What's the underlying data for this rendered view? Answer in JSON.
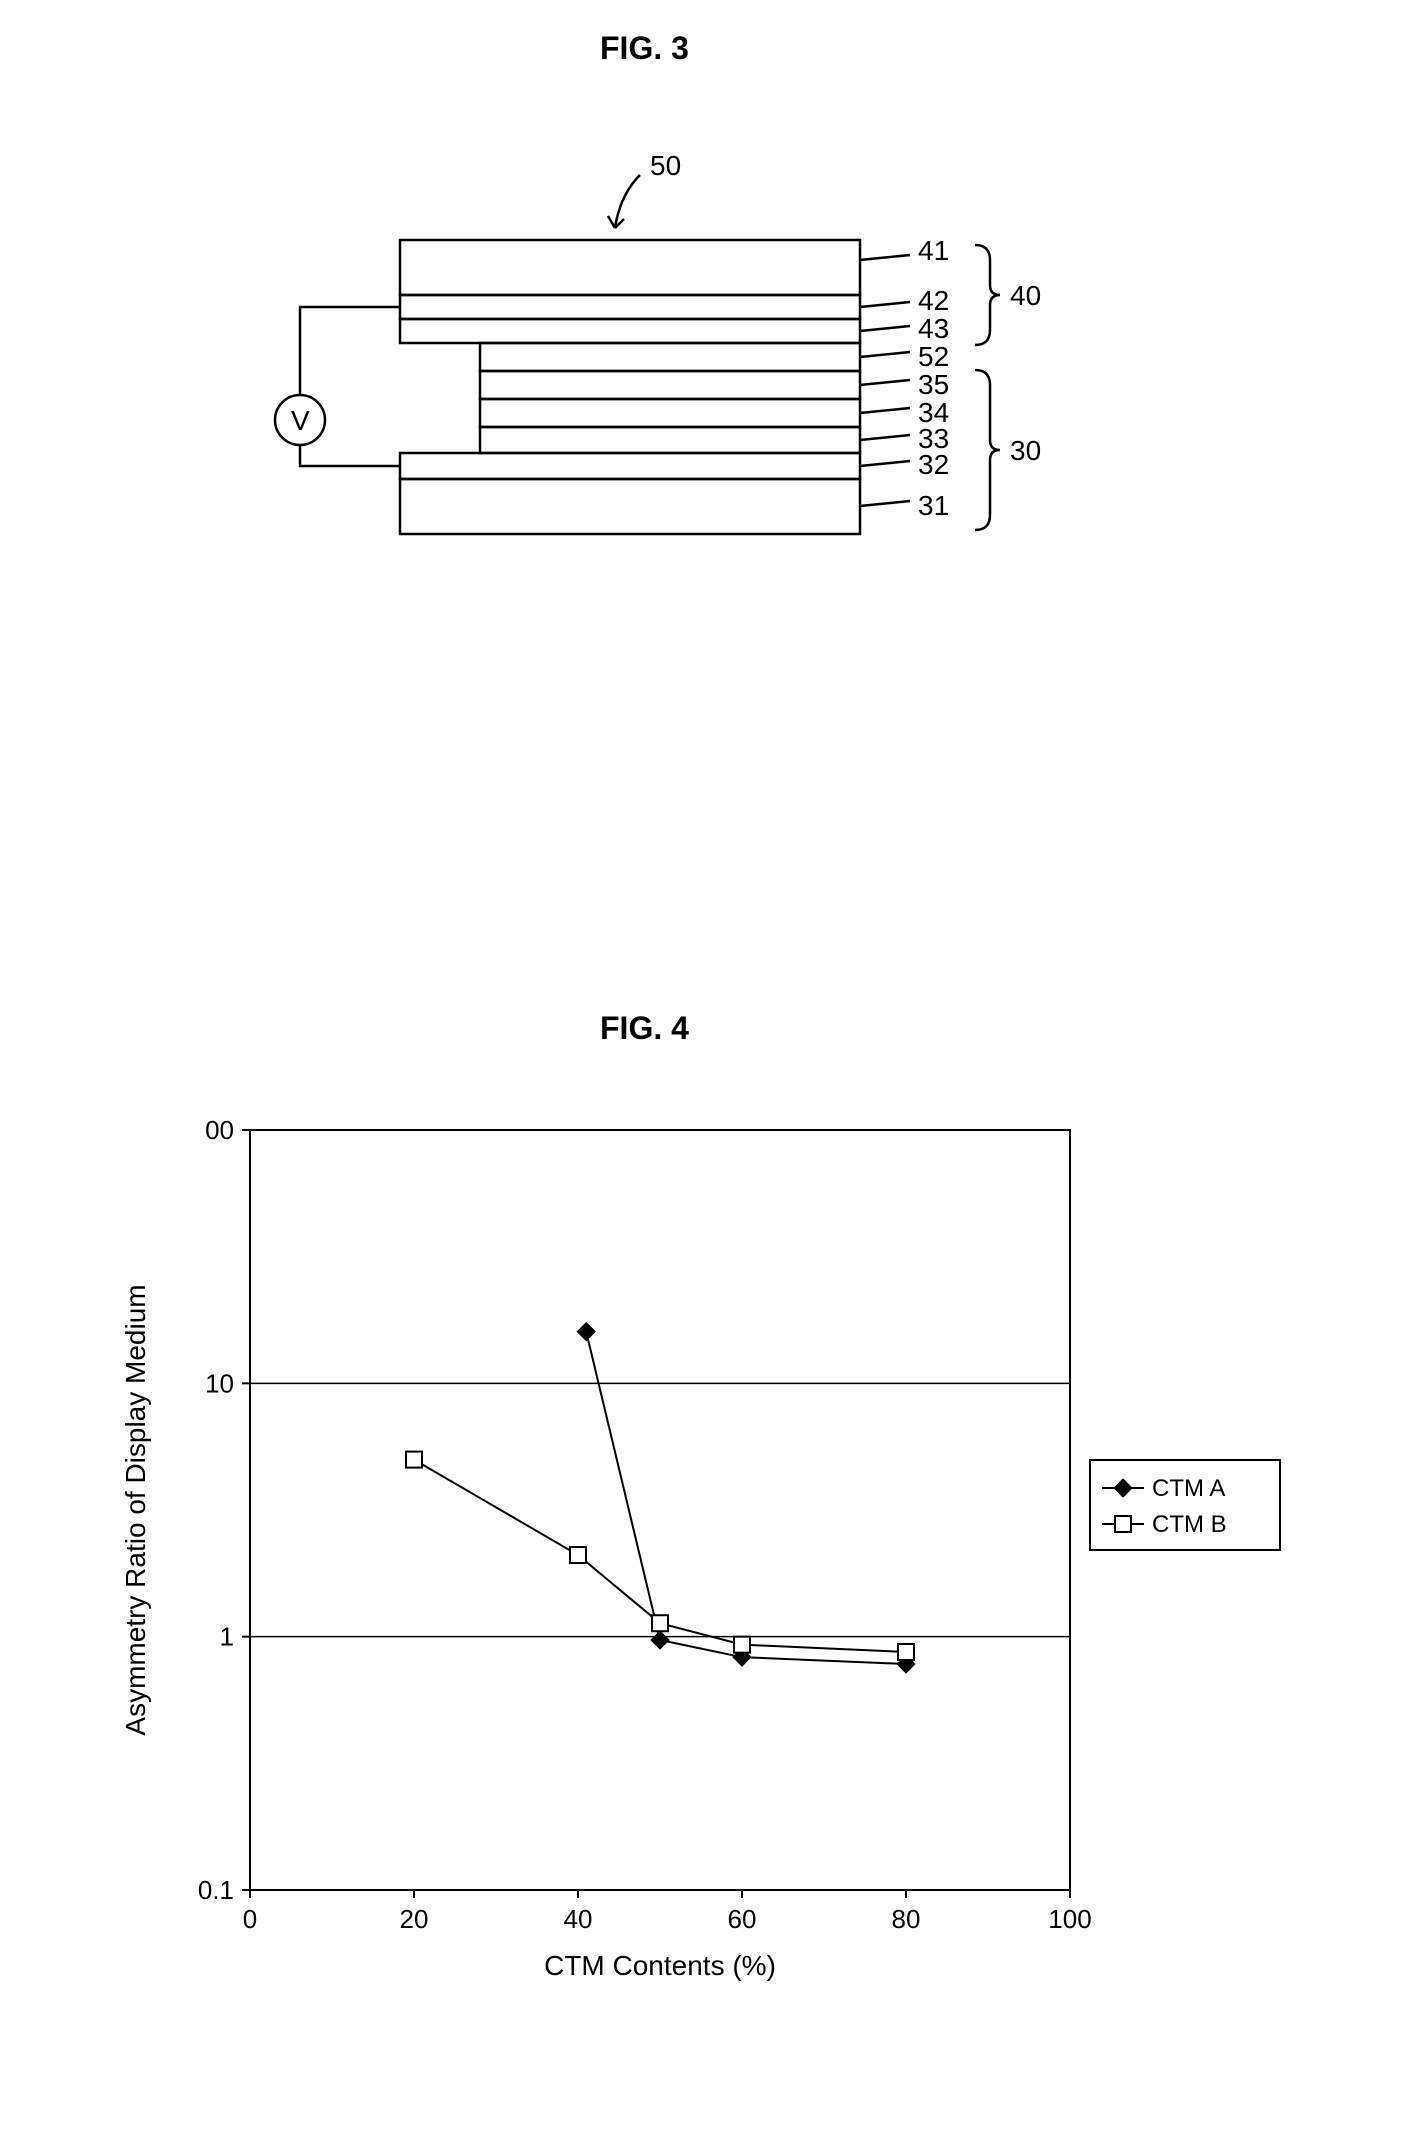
{
  "fig3": {
    "title": "FIG. 3",
    "labels": {
      "l50": "50",
      "l41": "41",
      "l42": "42",
      "l43": "43",
      "l52": "52",
      "l35": "35",
      "l34": "34",
      "l33": "33",
      "l32": "32",
      "l31": "31",
      "l40": "40",
      "l30": "30",
      "voltage": "V"
    },
    "stroke": "#000000",
    "stroke_width": 2.5,
    "font_size": 28
  },
  "fig4": {
    "title": "FIG. 4",
    "type": "line",
    "xlabel": "CTM Contents (%)",
    "ylabel": "Asymmetry Ratio of Display Medium",
    "xlim": [
      0,
      100
    ],
    "ylim": [
      0.1,
      100
    ],
    "yscale": "log",
    "xticks": [
      0,
      20,
      40,
      60,
      80,
      100
    ],
    "yticks": [
      0.1,
      1,
      10,
      100
    ],
    "ytick_labels": [
      "0.1",
      "1",
      "10",
      "00"
    ],
    "grid_y": [
      1,
      10
    ],
    "background_color": "#ffffff",
    "axis_color": "#000000",
    "grid_color": "#000000",
    "axis_width": 2,
    "tick_fontsize": 26,
    "label_fontsize": 28,
    "legend_fontsize": 24,
    "series": [
      {
        "name": "CTM A",
        "marker": "diamond-filled",
        "color": "#000000",
        "line_width": 2,
        "x": [
          41,
          50,
          60,
          80
        ],
        "y": [
          16,
          0.97,
          0.83,
          0.78
        ]
      },
      {
        "name": "CTM B",
        "marker": "square-open",
        "color": "#000000",
        "line_width": 2,
        "x": [
          20,
          40,
          50,
          60,
          80
        ],
        "y": [
          5.0,
          2.1,
          1.13,
          0.93,
          0.87
        ]
      }
    ],
    "legend_position": "right"
  }
}
